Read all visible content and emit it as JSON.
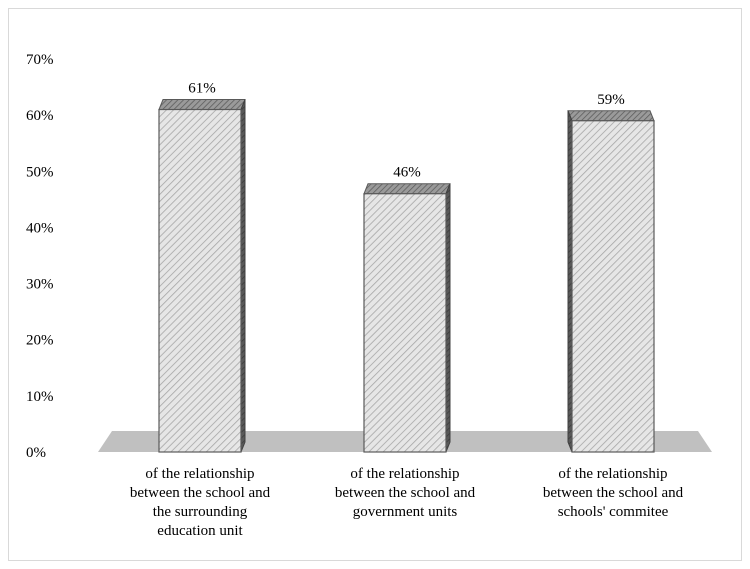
{
  "chart_data": {
    "type": "bar",
    "title": "",
    "xlabel": "",
    "ylabel": "",
    "ylim": [
      0,
      70
    ],
    "y_ticks": [
      "0%",
      "10%",
      "20%",
      "30%",
      "40%",
      "50%",
      "60%",
      "70%"
    ],
    "y_tick_values": [
      0,
      10,
      20,
      30,
      40,
      50,
      60,
      70
    ],
    "categories": [
      [
        "of the relationship",
        "between the school and",
        "the surrounding",
        "education unit"
      ],
      [
        "of the relationship",
        "between the school and",
        "government units"
      ],
      [
        "of the relationship",
        "between the school and",
        "schools' commitee"
      ]
    ],
    "values": [
      61,
      46,
      59
    ],
    "data_labels": [
      "61%",
      "46%",
      "59%"
    ],
    "grid": false,
    "legend": "none",
    "colors": {
      "bar_fill": "#e6e6e6",
      "bar_hatch": "#9a9a9a",
      "bar_side": "#595959",
      "bar_top": "#8c8c8c",
      "floor": "#c0c0c0",
      "outline": "#595959"
    }
  }
}
